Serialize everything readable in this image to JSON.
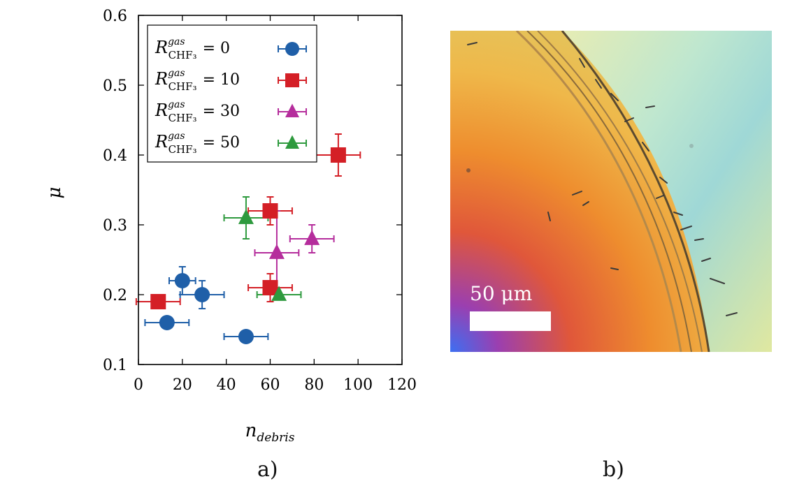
{
  "chart_data": {
    "type": "scatter",
    "title": "",
    "xlabel": "n_debris",
    "ylabel": "μ",
    "xlim": [
      0,
      120
    ],
    "ylim": [
      0.1,
      0.6
    ],
    "xticks": [
      "0",
      "20",
      "40",
      "60",
      "80",
      "100",
      "120"
    ],
    "yticks": [
      "0.1",
      "0.2",
      "0.3",
      "0.4",
      "0.5",
      "0.6"
    ],
    "legend_position": "top-left",
    "series": [
      {
        "name": "R_CHF3^gas =  0",
        "legend_prefix": "R",
        "legend_sup": "gas",
        "legend_sub": "CHF₃",
        "legend_value": "=   0",
        "marker": "circle",
        "color": "#1f5fa8",
        "points": [
          {
            "x": 20,
            "y": 0.22,
            "xerr": 6,
            "yerr": 0.02
          },
          {
            "x": 29,
            "y": 0.2,
            "xerr": 10,
            "yerr": 0.02
          },
          {
            "x": 13,
            "y": 0.16,
            "xerr": 10,
            "yerr": 0.0
          },
          {
            "x": 49,
            "y": 0.14,
            "xerr": 10,
            "yerr": 0.0
          }
        ]
      },
      {
        "name": "R_CHF3^gas = 10",
        "legend_prefix": "R",
        "legend_sup": "gas",
        "legend_sub": "CHF₃",
        "legend_value": "= 10",
        "marker": "square",
        "color": "#d41f26",
        "points": [
          {
            "x": 91,
            "y": 0.4,
            "xerr": 10,
            "yerr": 0.03
          },
          {
            "x": 60,
            "y": 0.32,
            "xerr": 10,
            "yerr": 0.02
          },
          {
            "x": 60,
            "y": 0.21,
            "xerr": 10,
            "yerr": 0.02
          },
          {
            "x": 9,
            "y": 0.19,
            "xerr": 10,
            "yerr": 0.0
          }
        ]
      },
      {
        "name": "R_CHF3^gas = 30",
        "legend_prefix": "R",
        "legend_sup": "gas",
        "legend_sub": "CHF₃",
        "legend_value": "= 30",
        "marker": "triangle",
        "color": "#b52d9c",
        "points": [
          {
            "x": 63,
            "y": 0.26,
            "xerr": 10,
            "yerr": 0.06
          },
          {
            "x": 79,
            "y": 0.28,
            "xerr": 10,
            "yerr": 0.02
          }
        ]
      },
      {
        "name": "R_CHF3^gas = 50",
        "legend_prefix": "R",
        "legend_sup": "gas",
        "legend_sub": "CHF₃",
        "legend_value": "= 50",
        "marker": "triangle",
        "color": "#2e9a3e",
        "points": [
          {
            "x": 49,
            "y": 0.31,
            "xerr": 10,
            "yerr": 0.03
          },
          {
            "x": 64,
            "y": 0.2,
            "xerr": 10,
            "yerr": 0.0
          }
        ]
      }
    ]
  },
  "axis_labels": {
    "x_main": "n",
    "x_sub": "debris",
    "y": "μ"
  },
  "panel_labels": {
    "a": "a)",
    "b": "b)"
  },
  "micrograph": {
    "scale_label": "50 μm"
  }
}
